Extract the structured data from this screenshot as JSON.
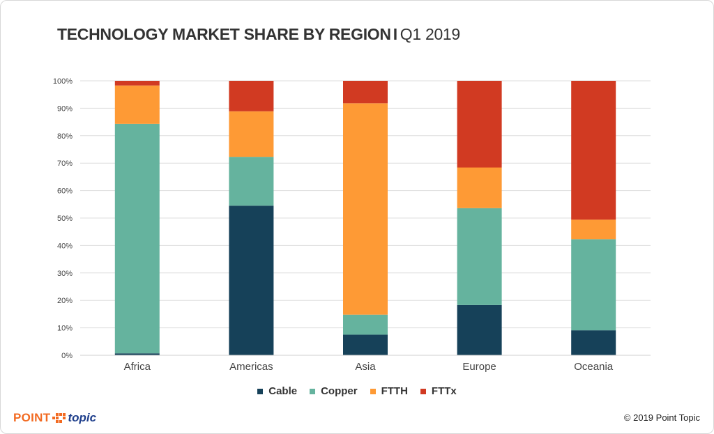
{
  "title": {
    "main": "TECHNOLOGY MARKET SHARE BY REGION",
    "separator": "I",
    "period": "Q1 2019"
  },
  "footer": {
    "logo_left": "POINT",
    "logo_right": "topic",
    "copyright": "© 2019 Point Topic"
  },
  "colors": {
    "Cable": "#164159",
    "Copper": "#65b39e",
    "FTTH": "#fe9a35",
    "FTTx": "#d13a22",
    "grid": "#dddddd",
    "axis_text": "#444444"
  },
  "chart_data": {
    "type": "bar",
    "stacked": true,
    "categories": [
      "Africa",
      "Americas",
      "Asia",
      "Europe",
      "Oceania"
    ],
    "series": [
      {
        "name": "Cable",
        "values": [
          0.7,
          54.5,
          7.5,
          18.3,
          9.1
        ]
      },
      {
        "name": "Copper",
        "values": [
          83.6,
          17.8,
          7.3,
          35.3,
          33.2
        ]
      },
      {
        "name": "FTTH",
        "values": [
          14.0,
          16.6,
          77.0,
          14.8,
          7.1
        ]
      },
      {
        "name": "FTTx",
        "values": [
          1.7,
          11.1,
          8.2,
          31.6,
          50.6
        ]
      }
    ],
    "yticks": [
      "0%",
      "10%",
      "20%",
      "30%",
      "40%",
      "50%",
      "60%",
      "70%",
      "80%",
      "90%",
      "100%"
    ],
    "ylim": [
      0,
      100
    ],
    "grid": true,
    "legend_position": "bottom"
  }
}
